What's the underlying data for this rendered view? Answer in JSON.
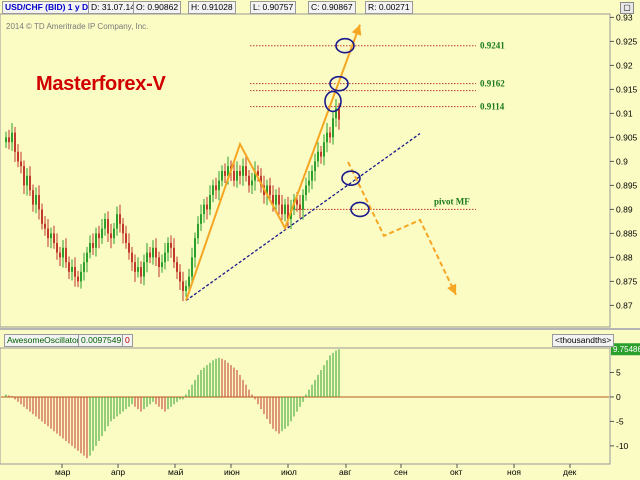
{
  "info_bar": {
    "symbol": "USD/CHF (BID) 1 y D",
    "date": "D: 31.07.14",
    "open": "O: 0.90862",
    "high": "H: 0.91028",
    "low": "L: 0.90757",
    "close": "C: 0.90867",
    "range": "R: 0.00271"
  },
  "copyright": "2014 © TD Ameritrade IP Company, Inc.",
  "brand": "Masterforex-V",
  "indicator": {
    "name": "AwesomeOscillator",
    "value": "0.0097549",
    "zero": "0",
    "units": "<thousandths>",
    "current_label": "9.75486"
  },
  "colors": {
    "background": "#fbfbc4",
    "bull_candle": "#2ca02c",
    "bear_candle": "#c0392b",
    "forecast": "#f5a623",
    "trendline": "#1a1a8c",
    "level_line": "#c0392b",
    "level_text": "#1a7a1a",
    "marker_circle": "#1a1a8c"
  },
  "chart_data": [
    {
      "type": "candlestick",
      "title": "USD/CHF (BID) 1 y D",
      "x_tick_labels": [
        "мар",
        "апр",
        "май",
        "июн",
        "июл",
        "авг",
        "сен",
        "окт",
        "ноя",
        "дек"
      ],
      "ylim": [
        0.8655,
        0.9305
      ],
      "y_ticks": [
        0.87,
        0.875,
        0.88,
        0.885,
        0.89,
        0.895,
        0.9,
        0.905,
        0.91,
        0.915,
        0.92,
        0.925,
        0.93
      ],
      "y_tick_labels": [
        "0.87",
        "0.875",
        "0.88",
        "0.885",
        "0.89",
        "0.895",
        "0.9",
        "0.905",
        "0.91",
        "0.915",
        "0.92",
        "0.925",
        "0.93"
      ],
      "closes": [
        0.905,
        0.904,
        0.906,
        0.902,
        0.9,
        0.899,
        0.895,
        0.897,
        0.894,
        0.891,
        0.893,
        0.89,
        0.887,
        0.886,
        0.884,
        0.885,
        0.883,
        0.881,
        0.88,
        0.882,
        0.879,
        0.877,
        0.878,
        0.876,
        0.875,
        0.877,
        0.879,
        0.881,
        0.883,
        0.882,
        0.885,
        0.884,
        0.886,
        0.888,
        0.885,
        0.884,
        0.886,
        0.889,
        0.887,
        0.885,
        0.883,
        0.881,
        0.879,
        0.877,
        0.878,
        0.876,
        0.879,
        0.881,
        0.88,
        0.882,
        0.88,
        0.878,
        0.879,
        0.881,
        0.883,
        0.882,
        0.879,
        0.877,
        0.875,
        0.873,
        0.874,
        0.876,
        0.88,
        0.884,
        0.887,
        0.889,
        0.891,
        0.89,
        0.893,
        0.895,
        0.894,
        0.896,
        0.898,
        0.897,
        0.899,
        0.898,
        0.896,
        0.898,
        0.897,
        0.899,
        0.897,
        0.895,
        0.896,
        0.898,
        0.897,
        0.895,
        0.893,
        0.895,
        0.893,
        0.891,
        0.893,
        0.891,
        0.889,
        0.891,
        0.888,
        0.89,
        0.892,
        0.891,
        0.89,
        0.893,
        0.895,
        0.896,
        0.898,
        0.9,
        0.902,
        0.901,
        0.904,
        0.906,
        0.905,
        0.909,
        0.911,
        0.9087
      ],
      "levels": [
        {
          "label": "0.9241",
          "value": 0.9241
        },
        {
          "label": "0.9162",
          "value": 0.9162
        },
        {
          "label": "0.9114",
          "value": 0.9114
        },
        {
          "label": "pivot MF",
          "value": 0.89
        }
      ],
      "markers": [
        {
          "x_index": 113,
          "value": 0.9241
        },
        {
          "x_index": 111,
          "value": 0.9162
        },
        {
          "x_index": 109,
          "value": 0.9125
        },
        {
          "x_index": 115,
          "value": 0.8965
        },
        {
          "x_index": 118,
          "value": 0.89
        }
      ],
      "zigzag": [
        {
          "x_index": 60,
          "value": 0.871
        },
        {
          "x_index": 78,
          "value": 0.9036
        },
        {
          "x_index": 93,
          "value": 0.8861
        },
        {
          "x_index": 118,
          "value": 0.9285
        }
      ],
      "forecast_path": [
        {
          "x_index": 114,
          "value": 0.8999
        },
        {
          "x_index": 126,
          "value": 0.8845
        },
        {
          "x_index": 138,
          "value": 0.8878
        },
        {
          "x_index": 150,
          "value": 0.8722
        }
      ],
      "trendline": [
        {
          "x_index": 60,
          "value": 0.871
        },
        {
          "x_index": 138,
          "value": 0.9058
        }
      ]
    },
    {
      "type": "bar",
      "title": "AwesomeOscillator",
      "ylim": [
        -13.5,
        9.8
      ],
      "y_ticks": [
        5,
        0,
        -5,
        -10
      ],
      "y_tick_labels": [
        "5",
        "0",
        "-5",
        "-10"
      ],
      "values": [
        0.5,
        0.3,
        0.2,
        -0.5,
        -1.0,
        -1.5,
        -2.0,
        -2.5,
        -3.0,
        -3.5,
        -4.0,
        -4.5,
        -5.0,
        -5.5,
        -6.0,
        -6.5,
        -7.0,
        -7.5,
        -8.0,
        -8.5,
        -9.0,
        -9.5,
        -10.0,
        -10.5,
        -11.0,
        -11.5,
        -12.0,
        -12.5,
        -12.0,
        -11.0,
        -10.0,
        -9.0,
        -8.0,
        -7.0,
        -6.0,
        -5.0,
        -4.5,
        -4.0,
        -3.5,
        -3.0,
        -2.5,
        -2.0,
        -1.5,
        -2.0,
        -2.5,
        -3.0,
        -2.5,
        -2.0,
        -1.5,
        -1.0,
        -1.5,
        -2.0,
        -2.5,
        -3.0,
        -2.5,
        -2.0,
        -1.5,
        -1.0,
        -0.5,
        -0.5,
        0.5,
        1.5,
        2.5,
        3.5,
        4.5,
        5.5,
        6.0,
        6.5,
        7.0,
        7.5,
        7.8,
        8.0,
        7.8,
        7.5,
        7.0,
        6.5,
        6.0,
        5.5,
        4.5,
        3.5,
        2.5,
        1.5,
        0.5,
        -0.5,
        -1.5,
        -2.5,
        -3.5,
        -4.5,
        -5.5,
        -6.5,
        -7.0,
        -7.5,
        -7.0,
        -6.5,
        -6.0,
        -5.0,
        -4.0,
        -3.0,
        -2.0,
        -1.0,
        0.5,
        1.5,
        2.5,
        3.5,
        4.5,
        5.5,
        6.5,
        7.5,
        8.5,
        9.0,
        9.5,
        9.75
      ]
    }
  ]
}
